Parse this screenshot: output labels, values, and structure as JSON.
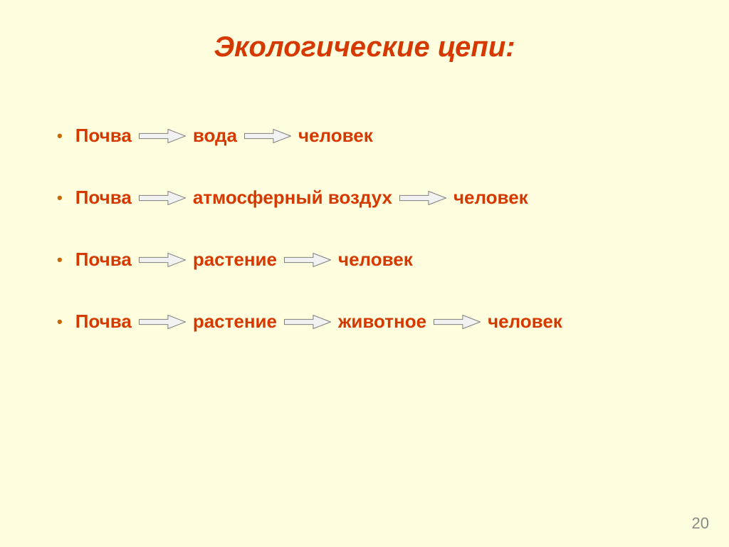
{
  "title": "Экологические цепи:",
  "chains": [
    {
      "items": [
        "Почва",
        "вода",
        "человек"
      ]
    },
    {
      "items": [
        "Почва",
        "атмосферный воздух",
        "человек"
      ]
    },
    {
      "items": [
        "Почва",
        "растение",
        "человек"
      ]
    },
    {
      "items": [
        "Почва",
        "растение",
        "животное",
        "человек"
      ]
    }
  ],
  "arrow": {
    "width": 66,
    "height": 20,
    "fill": "#f2f2f2",
    "stroke": "#7f7f7f",
    "stroke_width": 1
  },
  "colors": {
    "background": "#ffffe0",
    "title": "#d63900",
    "term": "#d63900",
    "bullet": "#cc6600",
    "page_number": "#888888"
  },
  "fonts": {
    "title_size": 40,
    "term_size": 26,
    "page_number_size": 22
  },
  "page_number": "20"
}
